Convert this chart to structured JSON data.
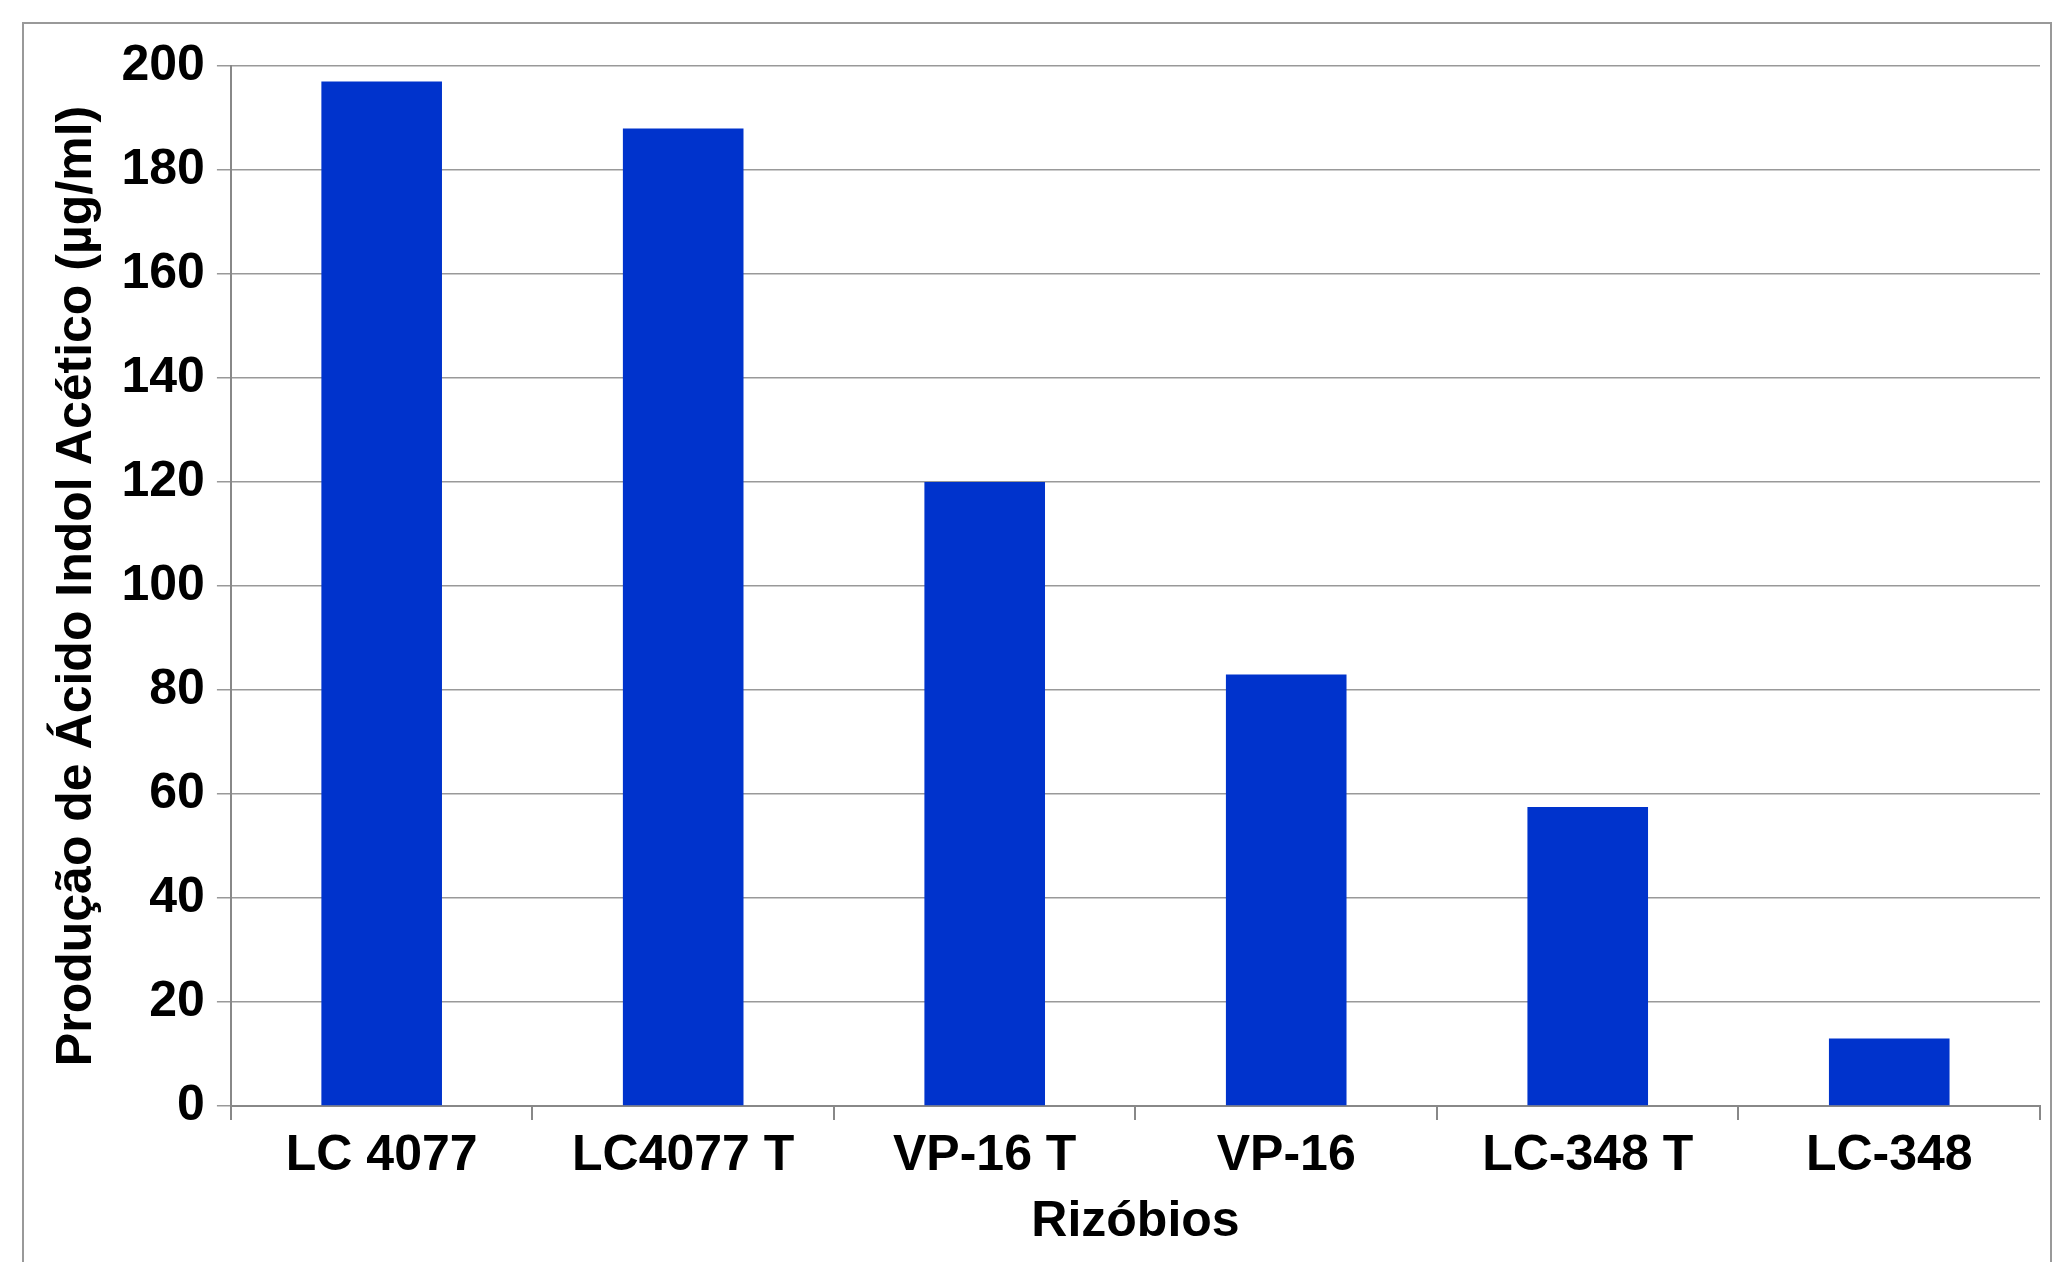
{
  "chart_data": {
    "type": "bar",
    "xlabel": "Rizóbios",
    "ylabel": "Produção de Ácido Indol Acético (µg/ml)",
    "categories": [
      "LC 4077",
      "LC4077 T",
      "VP-16 T",
      "VP-16",
      "LC-348 T",
      "LC-348"
    ],
    "values": [
      197,
      188,
      120,
      83,
      57.5,
      13
    ],
    "color": "#0033cc",
    "ylim": [
      0,
      200
    ],
    "yticks": [
      0,
      20,
      40,
      60,
      80,
      100,
      120,
      140,
      160,
      180,
      200
    ],
    "grid": "y",
    "legend": false
  }
}
